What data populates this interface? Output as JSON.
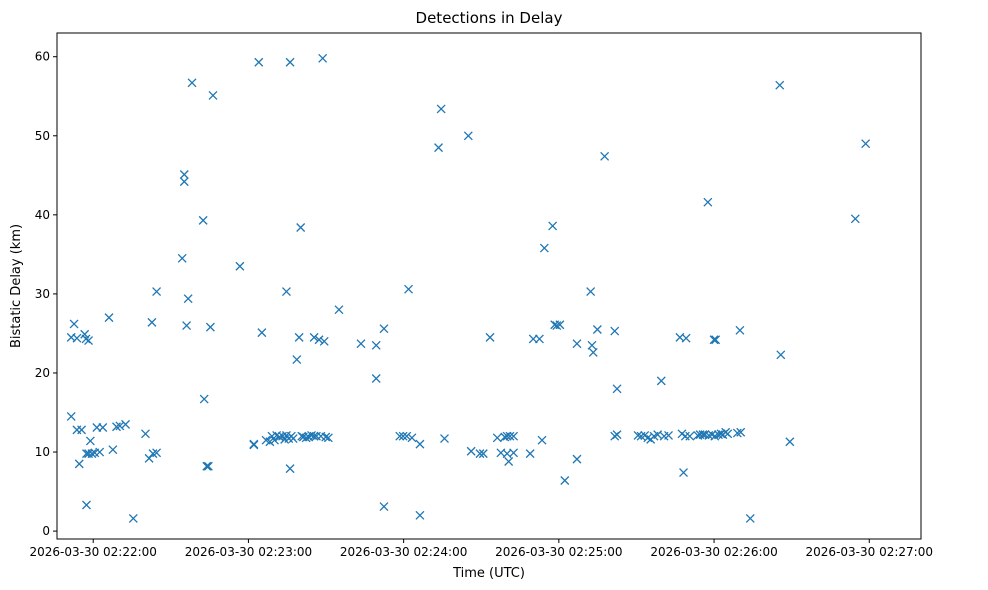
{
  "chart_data": {
    "type": "scatter",
    "title": "Detections in Delay",
    "xlabel": "Time (UTC)",
    "ylabel": "Bistatic Delay (km)",
    "marker": "x",
    "color": "#1f77b4",
    "x_unit": "seconds after 2026-03-30 02:22:00",
    "xlim": [
      -14,
      320
    ],
    "ylim": [
      -1,
      63
    ],
    "x_ticks": [
      {
        "value": 0,
        "label": "2026-03-30 02:22:00"
      },
      {
        "value": 60,
        "label": "2026-03-30 02:23:00"
      },
      {
        "value": 120,
        "label": "2026-03-30 02:24:00"
      },
      {
        "value": 180,
        "label": "2026-03-30 02:25:00"
      },
      {
        "value": 240,
        "label": "2026-03-30 02:26:00"
      },
      {
        "value": 300,
        "label": "2026-03-30 02:27:00"
      }
    ],
    "y_ticks": [
      {
        "value": 0,
        "label": "0"
      },
      {
        "value": 10,
        "label": "10"
      },
      {
        "value": 20,
        "label": "20"
      },
      {
        "value": 30,
        "label": "30"
      },
      {
        "value": 40,
        "label": "40"
      },
      {
        "value": 50,
        "label": "50"
      },
      {
        "value": 60,
        "label": "60"
      }
    ],
    "points": [
      [
        -8.5,
        14.5
      ],
      [
        -8.5,
        24.5
      ],
      [
        -7.4,
        26.2
      ],
      [
        -6.3,
        24.4
      ],
      [
        -6.3,
        12.8
      ],
      [
        -5.4,
        8.5
      ],
      [
        -4.5,
        12.8
      ],
      [
        -3.3,
        24.9
      ],
      [
        -2.8,
        24.3
      ],
      [
        -2.6,
        9.8
      ],
      [
        -2.6,
        3.3
      ],
      [
        -1.8,
        24.1
      ],
      [
        -1.8,
        9.8
      ],
      [
        -1.1,
        11.4
      ],
      [
        -0.5,
        9.8
      ],
      [
        0.6,
        9.9
      ],
      [
        1.4,
        13.1
      ],
      [
        2.5,
        10
      ],
      [
        3.7,
        13.1
      ],
      [
        6.1,
        27
      ],
      [
        7.6,
        10.3
      ],
      [
        9,
        13.2
      ],
      [
        10.3,
        13.3
      ],
      [
        12.5,
        13.5
      ],
      [
        15.5,
        1.6
      ],
      [
        20.2,
        12.3
      ],
      [
        21.6,
        9.2
      ],
      [
        22.7,
        26.4
      ],
      [
        23.1,
        9.8
      ],
      [
        24.5,
        30.3
      ],
      [
        24.5,
        9.9
      ],
      [
        34.4,
        34.5
      ],
      [
        35.2,
        45.1
      ],
      [
        35.2,
        44.2
      ],
      [
        36.1,
        26
      ],
      [
        36.7,
        29.4
      ],
      [
        38.2,
        56.7
      ],
      [
        42.5,
        39.3
      ],
      [
        42.9,
        16.7
      ],
      [
        43.9,
        8.2
      ],
      [
        44.5,
        8.2
      ],
      [
        45.3,
        25.8
      ],
      [
        46.3,
        55.1
      ],
      [
        56.7,
        33.5
      ],
      [
        62.1,
        11
      ],
      [
        62.1,
        10.9
      ],
      [
        64,
        59.3
      ],
      [
        65.2,
        25.1
      ],
      [
        66.8,
        11.5
      ],
      [
        68.3,
        11.3
      ],
      [
        69.1,
        12
      ],
      [
        70.1,
        11.5
      ],
      [
        70.9,
        12.1
      ],
      [
        72,
        11.9
      ],
      [
        73.2,
        12
      ],
      [
        74,
        11.6
      ],
      [
        74.7,
        30.3
      ],
      [
        74.7,
        12.1
      ],
      [
        75.6,
        11.7
      ],
      [
        76.1,
        7.9
      ],
      [
        76.1,
        59.3
      ],
      [
        76.6,
        12
      ],
      [
        77.3,
        11.7
      ],
      [
        78.7,
        21.7
      ],
      [
        79.6,
        24.5
      ],
      [
        80.2,
        38.4
      ],
      [
        80.6,
        12
      ],
      [
        81.2,
        11.9
      ],
      [
        82.3,
        11.8
      ],
      [
        83.3,
        11.9
      ],
      [
        84.4,
        12.1
      ],
      [
        85.4,
        12
      ],
      [
        85.4,
        24.5
      ],
      [
        86.3,
        12
      ],
      [
        87.3,
        24.2
      ],
      [
        88,
        12
      ],
      [
        88.7,
        59.8
      ],
      [
        89.3,
        24
      ],
      [
        89.9,
        11.9
      ],
      [
        90.9,
        11.8
      ],
      [
        95,
        28
      ],
      [
        103.5,
        23.7
      ],
      [
        109.4,
        19.3
      ],
      [
        109.4,
        23.5
      ],
      [
        112.4,
        25.6
      ],
      [
        112.4,
        3.1
      ],
      [
        118.5,
        12
      ],
      [
        119.8,
        12
      ],
      [
        121.2,
        12
      ],
      [
        121.9,
        30.6
      ],
      [
        123.2,
        11.8
      ],
      [
        126.3,
        11
      ],
      [
        126.3,
        2
      ],
      [
        133.5,
        48.5
      ],
      [
        134.5,
        53.4
      ],
      [
        135.8,
        11.7
      ],
      [
        145,
        50
      ],
      [
        146.1,
        10.1
      ],
      [
        149.5,
        9.8
      ],
      [
        150.8,
        9.8
      ],
      [
        153.4,
        24.5
      ],
      [
        156.2,
        11.8
      ],
      [
        157.6,
        9.9
      ],
      [
        159.1,
        11.9
      ],
      [
        160,
        12
      ],
      [
        160,
        9.8
      ],
      [
        160.6,
        8.8
      ],
      [
        161.1,
        12
      ],
      [
        162.5,
        12
      ],
      [
        162.5,
        9.9
      ],
      [
        168.9,
        9.8
      ],
      [
        170.1,
        24.3
      ],
      [
        172.5,
        24.3
      ],
      [
        173.5,
        11.5
      ],
      [
        174.4,
        35.8
      ],
      [
        177.6,
        38.6
      ],
      [
        178.4,
        26.1
      ],
      [
        179.2,
        26
      ],
      [
        180.4,
        26.1
      ],
      [
        182.3,
        6.4
      ],
      [
        187,
        23.7
      ],
      [
        187,
        9.1
      ],
      [
        192.3,
        30.3
      ],
      [
        192.8,
        23.5
      ],
      [
        193.3,
        22.6
      ],
      [
        194.9,
        25.5
      ],
      [
        197.7,
        47.4
      ],
      [
        201.6,
        12
      ],
      [
        201.6,
        25.3
      ],
      [
        202.5,
        18
      ],
      [
        202.5,
        12.2
      ],
      [
        210.6,
        12.1
      ],
      [
        211.8,
        12
      ],
      [
        213.2,
        12.1
      ],
      [
        214.4,
        11.8
      ],
      [
        215.5,
        11.6
      ],
      [
        216.8,
        12
      ],
      [
        218.2,
        12.2
      ],
      [
        219.6,
        19
      ],
      [
        220.7,
        12
      ],
      [
        222.4,
        12.1
      ],
      [
        226.8,
        24.5
      ],
      [
        227.6,
        12.3
      ],
      [
        228.2,
        7.4
      ],
      [
        228.9,
        12
      ],
      [
        229.2,
        24.4
      ],
      [
        230.6,
        12
      ],
      [
        233.7,
        12.1
      ],
      [
        234.6,
        12.2
      ],
      [
        235.7,
        12.2
      ],
      [
        236.5,
        12.2
      ],
      [
        237.6,
        41.6
      ],
      [
        238,
        12.1
      ],
      [
        239.2,
        12.2
      ],
      [
        240,
        24.2
      ],
      [
        240.3,
        12
      ],
      [
        240.6,
        24.2
      ],
      [
        241.7,
        12.2
      ],
      [
        242.7,
        12.3
      ],
      [
        243.4,
        12.2
      ],
      [
        244.5,
        12.5
      ],
      [
        245.3,
        12.3
      ],
      [
        249,
        12.4
      ],
      [
        250,
        25.4
      ],
      [
        250.3,
        12.5
      ],
      [
        254,
        1.6
      ],
      [
        265.4,
        56.4
      ],
      [
        265.8,
        22.3
      ],
      [
        269.3,
        11.3
      ],
      [
        294.6,
        39.5
      ],
      [
        298.6,
        49
      ]
    ]
  }
}
